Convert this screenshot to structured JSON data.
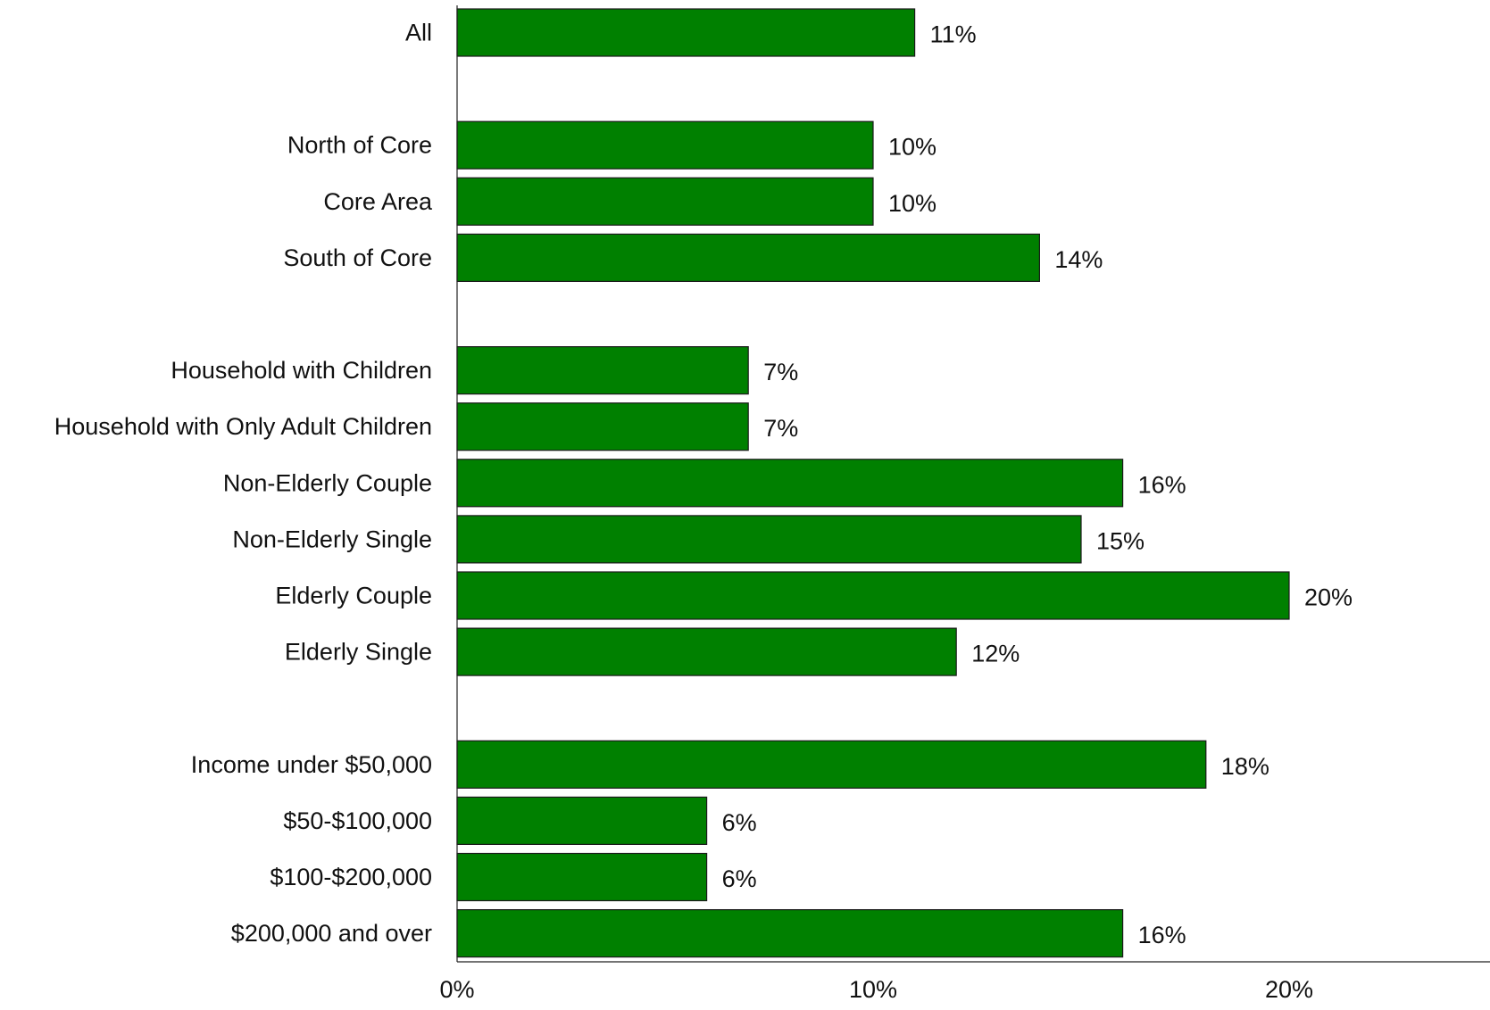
{
  "chart_data": {
    "type": "bar",
    "orientation": "horizontal",
    "title": "",
    "xlabel": "",
    "ylabel": "",
    "categories": [
      "All",
      "",
      "North of Core",
      "Core Area",
      "South of Core",
      "",
      "Household with Children",
      "Household with Only Adult Children",
      "Non-Elderly Couple",
      "Non-Elderly Single",
      "Elderly Couple",
      "Elderly Single",
      "",
      "Income under $50,000",
      "$50-$100,000",
      "$100-$200,000",
      "$200,000 and over"
    ],
    "values": [
      11,
      null,
      10,
      10,
      14,
      null,
      7,
      7,
      16,
      15,
      20,
      12,
      null,
      18,
      6,
      6,
      16
    ],
    "value_labels": [
      "11%",
      "",
      "10%",
      "10%",
      "14%",
      "",
      "7%",
      "7%",
      "16%",
      "15%",
      "20%",
      "12%",
      "",
      "18%",
      "6%",
      "6%",
      "16%"
    ],
    "xlim": [
      0,
      24
    ],
    "x_ticks": [
      0,
      10,
      20
    ],
    "x_tick_labels": [
      "0%",
      "10%",
      "20%"
    ],
    "grid": false,
    "legend": "none",
    "bar_color": "#008000"
  }
}
